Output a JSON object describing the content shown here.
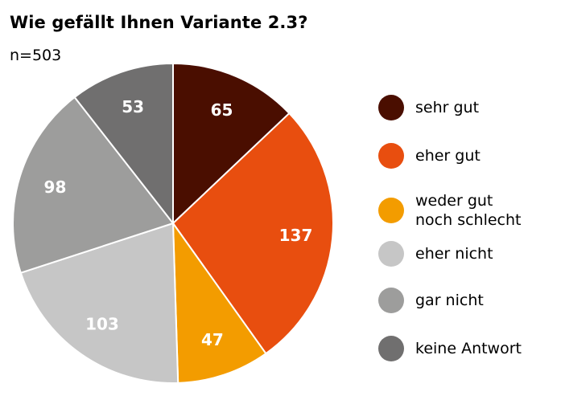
{
  "chart_data": {
    "type": "pie",
    "title": "Wie gefällt Ihnen Variante 2.3?",
    "subtitle": "n=503",
    "slices": [
      {
        "name": "sehr gut",
        "value": 65,
        "color": "#4a0e00"
      },
      {
        "name": "eher gut",
        "value": 137,
        "color": "#e84e0f"
      },
      {
        "name": "weder gut\nnoch schlecht",
        "value": 47,
        "color": "#f39c00"
      },
      {
        "name": "eher nicht",
        "value": 103,
        "color": "#c6c6c6"
      },
      {
        "name": "gar nicht",
        "value": 98,
        "color": "#9d9d9c"
      },
      {
        "name": "keine Antwort",
        "value": 53,
        "color": "#706f6f"
      }
    ],
    "legend_position": "right"
  }
}
